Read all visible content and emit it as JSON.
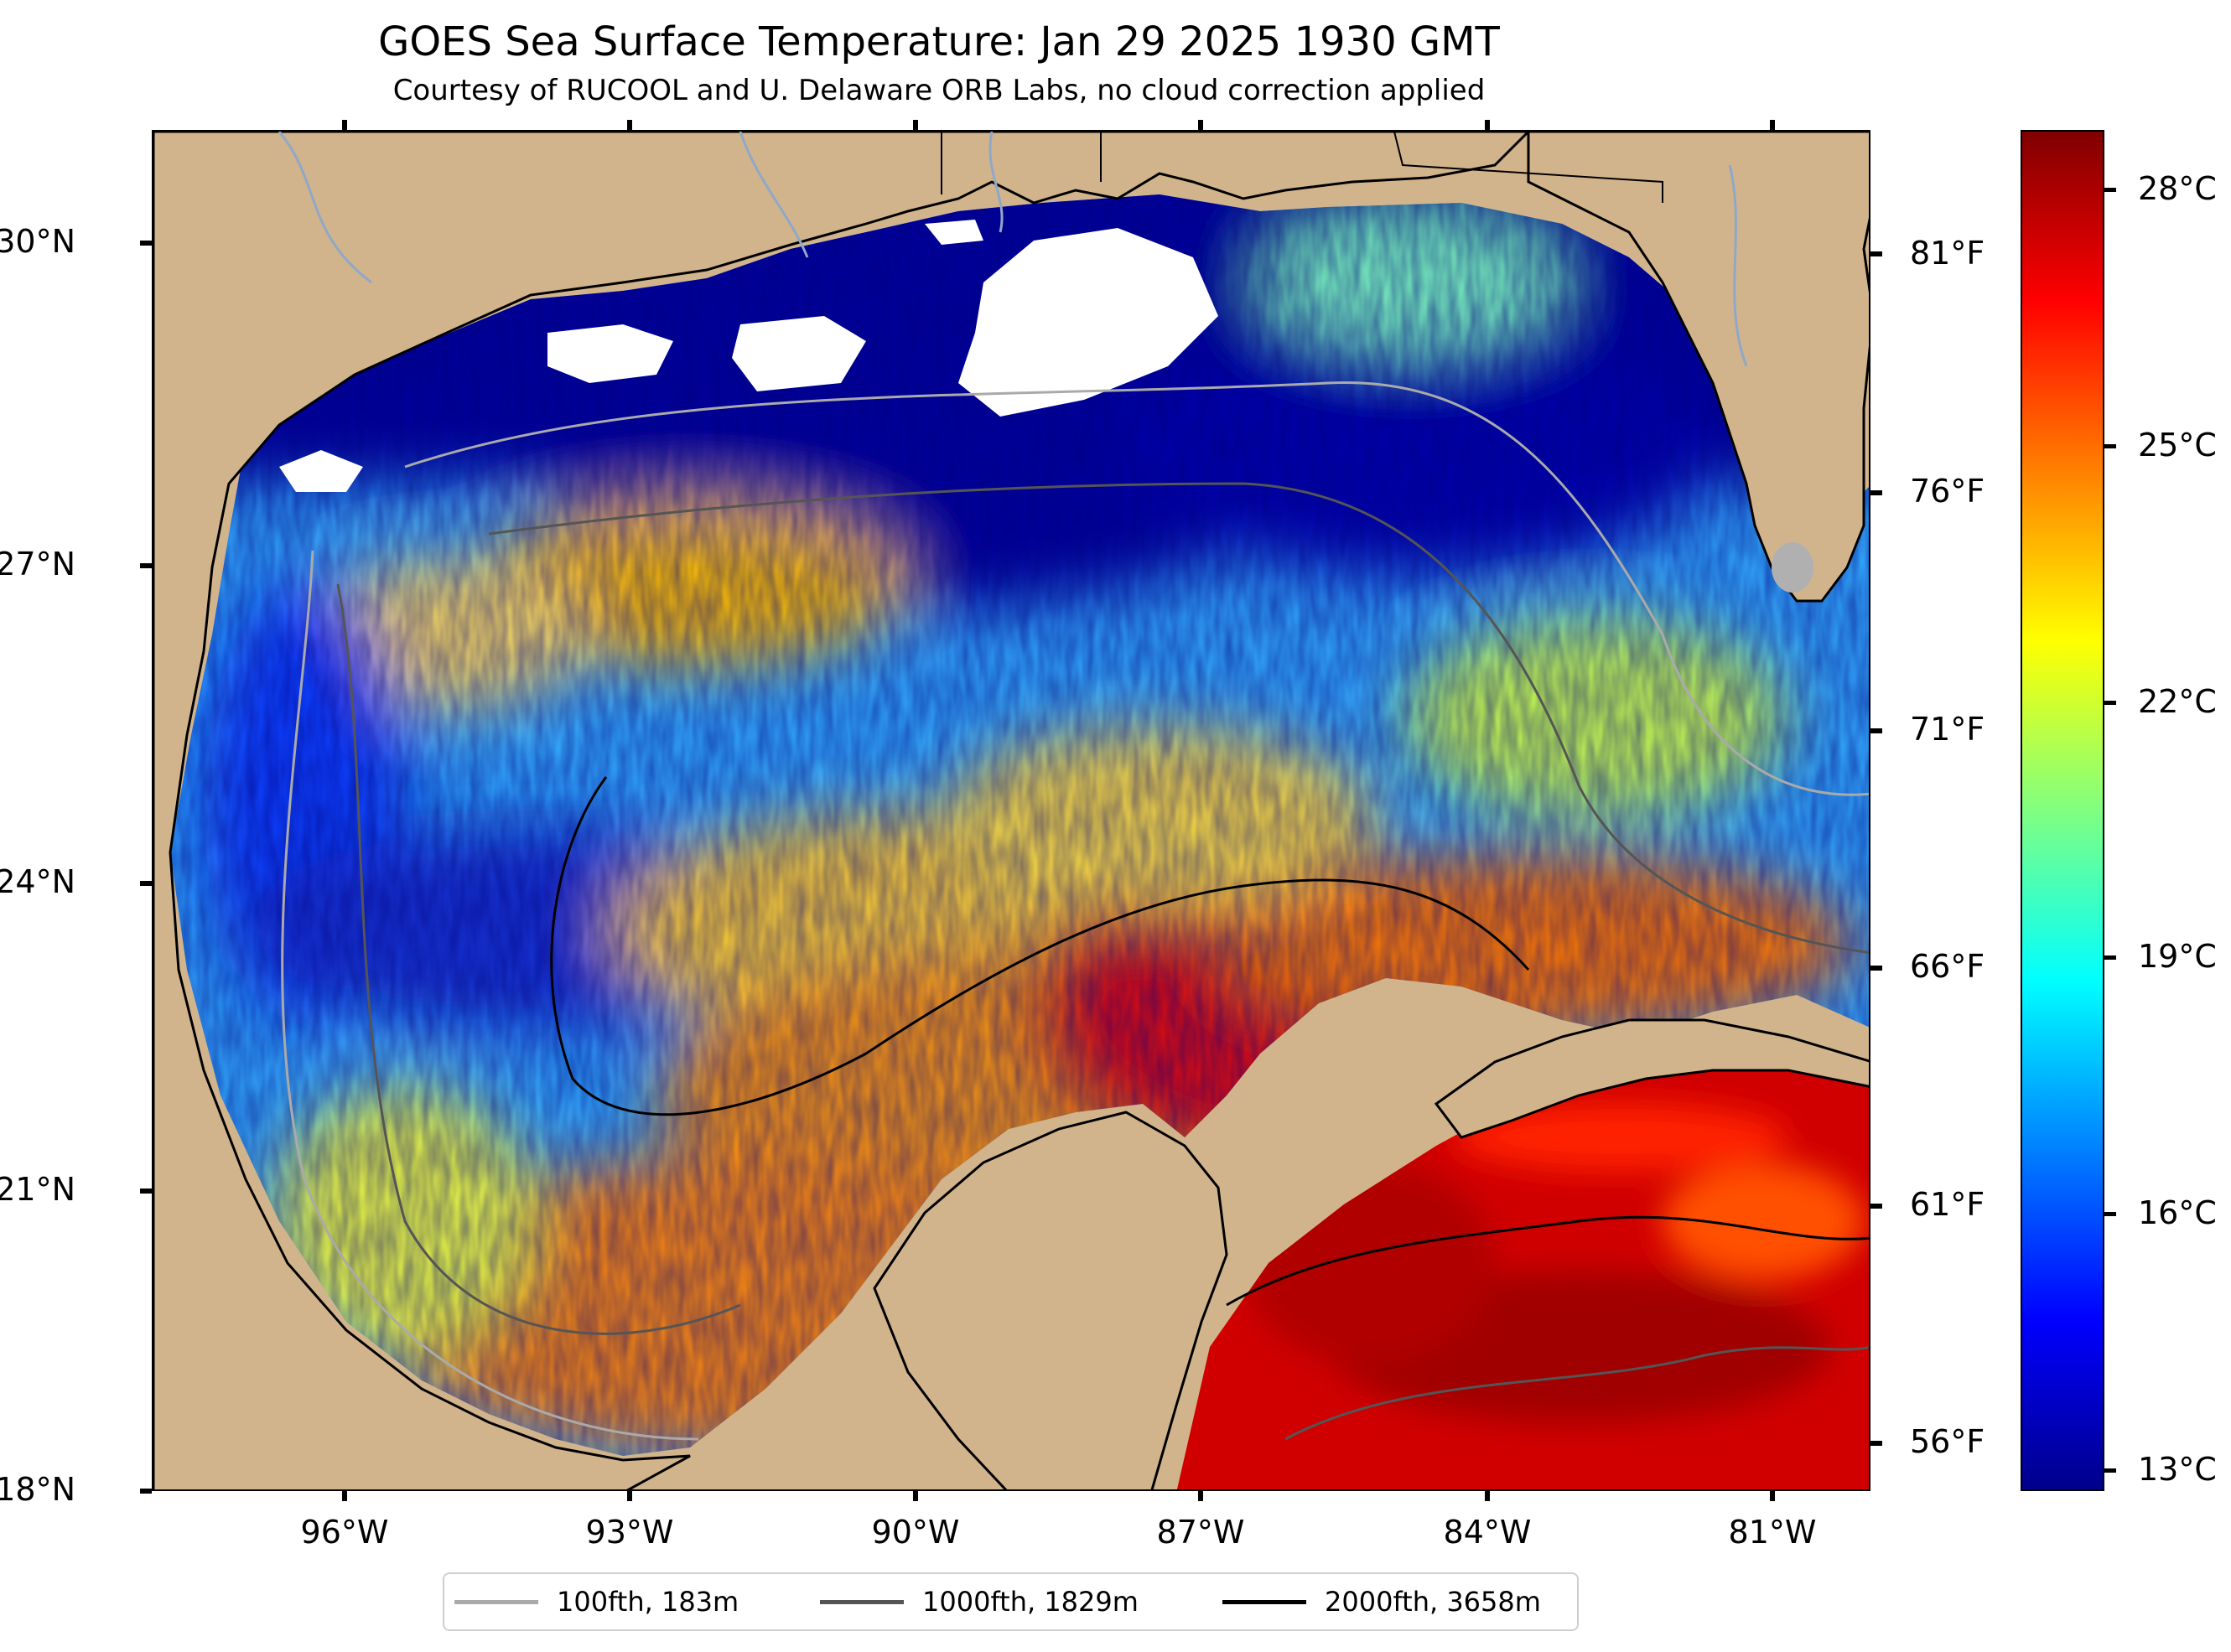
{
  "title": "GOES Sea Surface Temperature: Jan 29 2025 1930 GMT",
  "subtitle": "Courtesy of RUCOOL and U. Delaware ORB Labs, no cloud correction applied",
  "map": {
    "lat_ticks": [
      "30°N",
      "27°N",
      "24°N",
      "21°N",
      "18°N"
    ],
    "lon_ticks": [
      "96°W",
      "93°W",
      "90°W",
      "87°W",
      "84°W",
      "81°W"
    ],
    "fahrenheit_ticks": [
      "81°F",
      "76°F",
      "71°F",
      "66°F",
      "61°F",
      "56°F"
    ],
    "land_color": "#d2b48c",
    "cloud_color": "#ffffff"
  },
  "colorbar": {
    "labels": [
      "28°C",
      "25°C",
      "22°C",
      "19°C",
      "16°C",
      "13°C"
    ],
    "colormap": "jet",
    "colors": [
      "#800000",
      "#ff0000",
      "#ff8000",
      "#ffff00",
      "#80ff80",
      "#00ffff",
      "#0080ff",
      "#0000ff",
      "#00008b"
    ]
  },
  "legend": {
    "items": [
      {
        "label": "100fth, 183m",
        "color": "#aaaaaa"
      },
      {
        "label": "1000fth, 1829m",
        "color": "#555555"
      },
      {
        "label": "2000fth, 3658m",
        "color": "#000000"
      }
    ]
  }
}
